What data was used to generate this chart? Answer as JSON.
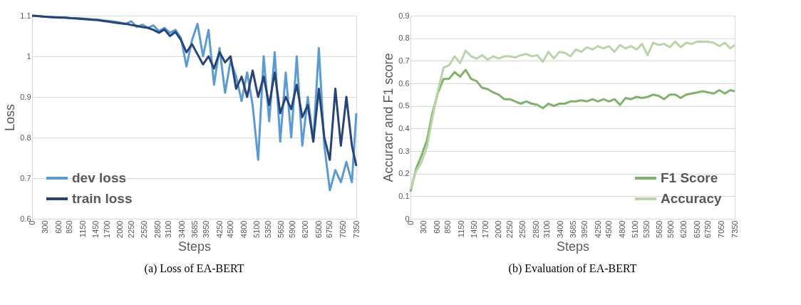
{
  "chart_data": [
    {
      "type": "line",
      "title": "(a) Loss of EA-BERT",
      "xlabel": "Steps",
      "ylabel": "Loss",
      "x": [
        0,
        125,
        250,
        375,
        500,
        625,
        750,
        875,
        1000,
        1125,
        1250,
        1375,
        1500,
        1625,
        1750,
        1875,
        2000,
        2125,
        2250,
        2375,
        2500,
        2625,
        2750,
        2875,
        3000,
        3125,
        3250,
        3375,
        3500,
        3625,
        3750,
        3875,
        4000,
        4125,
        4250,
        4375,
        4500,
        4625,
        4750,
        4875,
        5000,
        5125,
        5250,
        5375,
        5500,
        5625,
        5750,
        5875,
        6000,
        6125,
        6250,
        6375,
        6500,
        6625,
        6750,
        6875,
        7000,
        7125,
        7250,
        7350
      ],
      "series": [
        {
          "name": "dev loss",
          "color": "#5b9bd5",
          "values": [
            1.1,
            1.099,
            1.098,
            1.097,
            1.096,
            1.096,
            1.095,
            1.094,
            1.094,
            1.093,
            1.092,
            1.091,
            1.09,
            1.088,
            1.087,
            1.085,
            1.083,
            1.08,
            1.086,
            1.072,
            1.078,
            1.07,
            1.076,
            1.062,
            1.07,
            1.058,
            1.065,
            1.045,
            0.975,
            1.04,
            1.08,
            1.0,
            1.065,
            0.93,
            1.02,
            0.91,
            0.99,
            0.95,
            0.89,
            0.96,
            0.88,
            0.745,
            1.0,
            0.84,
            1.01,
            0.79,
            0.96,
            0.8,
            1.0,
            0.78,
            0.9,
            0.79,
            1.02,
            0.78,
            0.67,
            0.72,
            0.69,
            0.74,
            0.69,
            0.86
          ]
        },
        {
          "name": "train loss",
          "color": "#264478",
          "values": [
            1.1,
            1.099,
            1.098,
            1.097,
            1.096,
            1.095,
            1.095,
            1.094,
            1.093,
            1.092,
            1.091,
            1.09,
            1.089,
            1.087,
            1.085,
            1.083,
            1.081,
            1.08,
            1.077,
            1.075,
            1.072,
            1.07,
            1.065,
            1.058,
            1.066,
            1.05,
            1.06,
            1.04,
            1.01,
            1.03,
            1.005,
            0.98,
            1.0,
            0.97,
            1.01,
            0.985,
            1.0,
            0.92,
            0.95,
            0.9,
            0.965,
            0.9,
            0.95,
            0.88,
            0.96,
            0.86,
            0.9,
            0.87,
            0.93,
            0.85,
            0.88,
            0.79,
            0.92,
            0.8,
            0.745,
            0.92,
            0.78,
            0.9,
            0.78,
            0.73
          ]
        }
      ],
      "xlim": [
        0,
        7350
      ],
      "xticks": [
        0,
        300,
        600,
        850,
        1150,
        1450,
        1700,
        2000,
        2250,
        2550,
        2850,
        3100,
        3400,
        3685,
        3950,
        4250,
        4500,
        4800,
        5100,
        5350,
        5650,
        5900,
        6200,
        6500,
        6750,
        7050,
        7350
      ],
      "ylim": [
        0.6,
        1.1
      ],
      "yticks": [
        0.6,
        0.7,
        0.8,
        0.9,
        1,
        1.1
      ],
      "grid": "y",
      "legend": "bottom left",
      "marker": "none",
      "line_style": "solid"
    },
    {
      "type": "line",
      "title": "(b) Evaluation of EA-BERT",
      "xlabel": "Steps",
      "ylabel": "Accuracr and F1 score",
      "x": [
        0,
        125,
        250,
        375,
        500,
        625,
        750,
        875,
        1000,
        1125,
        1250,
        1375,
        1500,
        1625,
        1750,
        1875,
        2000,
        2125,
        2250,
        2375,
        2500,
        2625,
        2750,
        2875,
        3000,
        3125,
        3250,
        3375,
        3500,
        3625,
        3750,
        3875,
        4000,
        4125,
        4250,
        4375,
        4500,
        4625,
        4750,
        4875,
        5000,
        5125,
        5250,
        5375,
        5500,
        5625,
        5750,
        5875,
        6000,
        6125,
        6250,
        6375,
        6500,
        6625,
        6750,
        6875,
        7000,
        7125,
        7250,
        7350
      ],
      "series": [
        {
          "name": "F1 Score",
          "color": "#7fb36a",
          "values": [
            0.12,
            0.22,
            0.28,
            0.35,
            0.47,
            0.56,
            0.62,
            0.62,
            0.65,
            0.63,
            0.66,
            0.62,
            0.61,
            0.58,
            0.575,
            0.56,
            0.55,
            0.53,
            0.53,
            0.52,
            0.51,
            0.52,
            0.51,
            0.505,
            0.49,
            0.51,
            0.5,
            0.51,
            0.51,
            0.52,
            0.52,
            0.525,
            0.52,
            0.53,
            0.52,
            0.53,
            0.52,
            0.53,
            0.505,
            0.535,
            0.53,
            0.54,
            0.535,
            0.54,
            0.55,
            0.545,
            0.53,
            0.55,
            0.55,
            0.535,
            0.55,
            0.555,
            0.56,
            0.565,
            0.56,
            0.555,
            0.57,
            0.555,
            0.57,
            0.565
          ]
        },
        {
          "name": "Accuracy",
          "color": "#b9d5a8",
          "values": [
            0.13,
            0.21,
            0.25,
            0.32,
            0.45,
            0.57,
            0.67,
            0.68,
            0.72,
            0.69,
            0.745,
            0.72,
            0.71,
            0.725,
            0.705,
            0.72,
            0.71,
            0.72,
            0.72,
            0.715,
            0.725,
            0.73,
            0.72,
            0.725,
            0.695,
            0.74,
            0.71,
            0.74,
            0.735,
            0.72,
            0.75,
            0.74,
            0.76,
            0.75,
            0.765,
            0.755,
            0.765,
            0.74,
            0.77,
            0.755,
            0.765,
            0.75,
            0.775,
            0.725,
            0.78,
            0.77,
            0.775,
            0.76,
            0.785,
            0.76,
            0.78,
            0.775,
            0.785,
            0.785,
            0.785,
            0.78,
            0.765,
            0.78,
            0.755,
            0.77
          ]
        }
      ],
      "xlim": [
        0,
        7350
      ],
      "xticks": [
        0,
        300,
        600,
        850,
        1150,
        1450,
        1700,
        2000,
        2250,
        2550,
        2850,
        3100,
        3400,
        3685,
        3950,
        4250,
        4500,
        4800,
        5100,
        5350,
        5650,
        5900,
        6200,
        6500,
        6750,
        7050,
        7350
      ],
      "ylim": [
        0,
        0.9
      ],
      "yticks": [
        0,
        0.1,
        0.2,
        0.3,
        0.4,
        0.5,
        0.6,
        0.7,
        0.8,
        0.9
      ],
      "grid": "y",
      "legend": "bottom right",
      "marker": "none",
      "line_style": "solid"
    }
  ]
}
